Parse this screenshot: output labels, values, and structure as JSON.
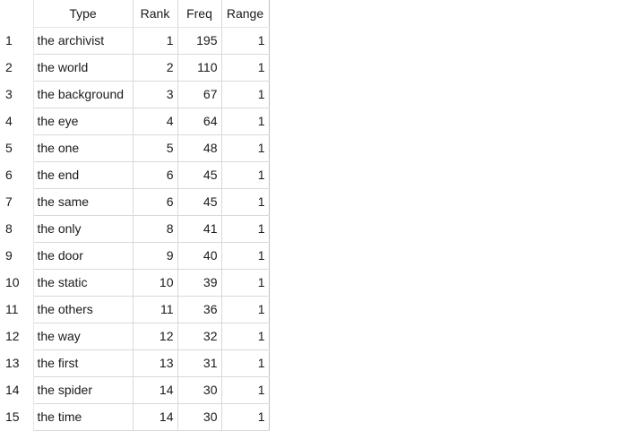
{
  "table": {
    "columns": [
      "Type",
      "Rank",
      "Freq",
      "Range"
    ],
    "rows": [
      {
        "index": "1",
        "type": "the archivist",
        "rank": "1",
        "freq": "195",
        "range": "1"
      },
      {
        "index": "2",
        "type": "the world",
        "rank": "2",
        "freq": "110",
        "range": "1"
      },
      {
        "index": "3",
        "type": "the background",
        "rank": "3",
        "freq": "67",
        "range": "1"
      },
      {
        "index": "4",
        "type": "the eye",
        "rank": "4",
        "freq": "64",
        "range": "1"
      },
      {
        "index": "5",
        "type": "the one",
        "rank": "5",
        "freq": "48",
        "range": "1"
      },
      {
        "index": "6",
        "type": "the end",
        "rank": "6",
        "freq": "45",
        "range": "1"
      },
      {
        "index": "7",
        "type": "the same",
        "rank": "6",
        "freq": "45",
        "range": "1"
      },
      {
        "index": "8",
        "type": "the only",
        "rank": "8",
        "freq": "41",
        "range": "1"
      },
      {
        "index": "9",
        "type": "the door",
        "rank": "9",
        "freq": "40",
        "range": "1"
      },
      {
        "index": "10",
        "type": "the static",
        "rank": "10",
        "freq": "39",
        "range": "1"
      },
      {
        "index": "11",
        "type": "the others",
        "rank": "11",
        "freq": "36",
        "range": "1"
      },
      {
        "index": "12",
        "type": "the way",
        "rank": "12",
        "freq": "32",
        "range": "1"
      },
      {
        "index": "13",
        "type": "the first",
        "rank": "13",
        "freq": "31",
        "range": "1"
      },
      {
        "index": "14",
        "type": "the spider",
        "rank": "14",
        "freq": "30",
        "range": "1"
      },
      {
        "index": "15",
        "type": "the time",
        "rank": "14",
        "freq": "30",
        "range": "1"
      }
    ]
  }
}
